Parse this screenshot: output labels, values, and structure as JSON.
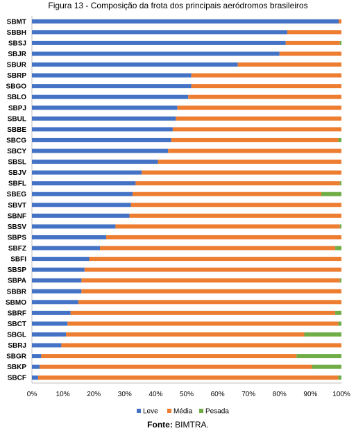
{
  "figure": {
    "title": "Figura 13 - Composição da frota dos principais aeródromos brasileiros",
    "source_label": "Fonte:",
    "source_text": "BIMTRA."
  },
  "chart_data": {
    "type": "bar",
    "orientation": "horizontal",
    "stacked": "percent",
    "title": "Figura 13 - Composição da frota dos principais aeródromos brasileiros",
    "categories": [
      "SBMT",
      "SBBH",
      "SBSJ",
      "SBJR",
      "SBUR",
      "SBRP",
      "SBGO",
      "SBLO",
      "SBPJ",
      "SBUL",
      "SBBE",
      "SBCG",
      "SBCY",
      "SBSL",
      "SBJV",
      "SBFL",
      "SBEG",
      "SBVT",
      "SBNF",
      "SBSV",
      "SBPS",
      "SBFZ",
      "SBFI",
      "SBSP",
      "SBPA",
      "SBBR",
      "SBMO",
      "SBRF",
      "SBCT",
      "SBGL",
      "SBRJ",
      "SBGR",
      "SBKP",
      "SBCF"
    ],
    "series": [
      {
        "name": "Leve",
        "color": "#4472C4",
        "values": [
          99.1,
          82.5,
          82.0,
          80.0,
          66.5,
          51.5,
          51.5,
          50.5,
          47.0,
          46.5,
          45.5,
          45.0,
          44.0,
          40.7,
          35.5,
          33.5,
          32.5,
          32.0,
          31.5,
          27.0,
          24.0,
          22.0,
          18.5,
          17.0,
          16.0,
          16.0,
          15.0,
          12.5,
          11.5,
          11.0,
          9.5,
          3.0,
          2.5,
          2.0
        ]
      },
      {
        "name": "Média",
        "color": "#ED7D31",
        "values": [
          0.9,
          17.5,
          17.5,
          20.0,
          33.5,
          48.5,
          48.5,
          49.5,
          53.0,
          53.5,
          54.5,
          54.0,
          56.0,
          59.3,
          64.5,
          66.0,
          61.0,
          68.0,
          68.5,
          72.5,
          76.0,
          76.0,
          81.5,
          83.0,
          83.5,
          84.0,
          85.0,
          85.5,
          87.5,
          77.0,
          90.5,
          82.5,
          88.0,
          97.0
        ]
      },
      {
        "name": "Pesada",
        "color": "#70AD47",
        "values": [
          0,
          0,
          0.5,
          0,
          0,
          0,
          0,
          0,
          0,
          0,
          0,
          1.0,
          0,
          0,
          0,
          0.5,
          6.5,
          0,
          0,
          0.5,
          0,
          2.0,
          0,
          0,
          0.5,
          0,
          0,
          2.0,
          1.0,
          12.0,
          0,
          14.5,
          9.5,
          1.0
        ]
      }
    ],
    "x_ticks": [
      "0%",
      "10%",
      "20%",
      "30%",
      "40%",
      "50%",
      "60%",
      "70%",
      "80%",
      "90%",
      "100%"
    ],
    "xlim": [
      0,
      100
    ],
    "grid": false,
    "legend": "bottom"
  }
}
